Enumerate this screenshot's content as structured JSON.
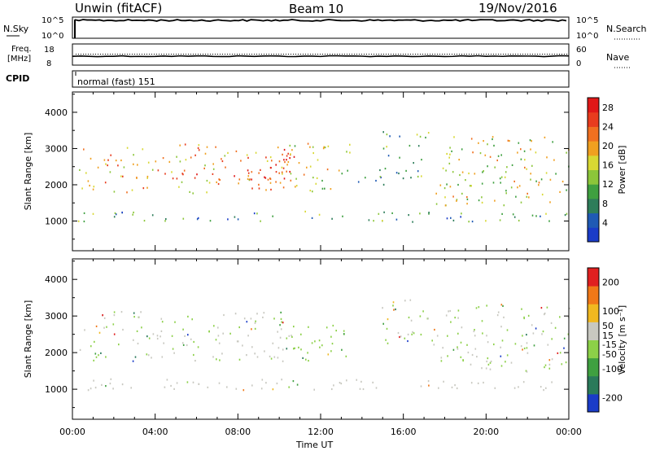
{
  "header": {
    "station": "Unwin (fitACF)",
    "beam": "Beam 10",
    "date": "19/Nov/2016"
  },
  "strips": {
    "nsky_label": "N.Sky",
    "nsky_ticks": [
      "10^5",
      "10^0"
    ],
    "nsearch_label": "N.Search",
    "freq_label_1": "Freq.",
    "freq_label_2": "[MHz]",
    "freq_ticks": [
      "18",
      "8"
    ],
    "nave_label": "Nave",
    "nave_ticks": [
      "60",
      "0"
    ],
    "cpid_label": "CPID",
    "cpid_value": "normal (fast) 151"
  },
  "chart_data": [
    {
      "type": "heatmap",
      "title": "",
      "xlabel": "",
      "ylabel": "Slant Range [km]",
      "xlim": [
        0,
        24
      ],
      "ylim": [
        180,
        4560
      ],
      "x_ticks": [
        "00:00",
        "04:00",
        "08:00",
        "12:00",
        "16:00",
        "20:00",
        "00:00"
      ],
      "y_ticks": [
        1000,
        2000,
        3000,
        4000
      ],
      "colorbar": {
        "label": "Power [dB]",
        "ticks": [
          4,
          8,
          12,
          16,
          20,
          24,
          28
        ],
        "range": [
          0,
          30
        ],
        "colors": [
          "#1a3cc8",
          "#1f5ab4",
          "#2e7d5a",
          "#3fa040",
          "#8cc63a",
          "#d8d833",
          "#f0a020",
          "#f07020",
          "#e83c1e",
          "#e01818"
        ]
      },
      "regions": [
        {
          "t0": 0.3,
          "t1": 10.6,
          "r0": 1780,
          "r1": 3150,
          "level": 20
        },
        {
          "t0": 5.5,
          "t1": 10.5,
          "r0": 2150,
          "r1": 2450,
          "level": 27
        },
        {
          "t0": 9.5,
          "t1": 10.8,
          "r0": 2350,
          "r1": 3050,
          "level": 28
        },
        {
          "t0": 10.5,
          "t1": 13.5,
          "r0": 1800,
          "r1": 3200,
          "level": 16
        },
        {
          "t0": 12.8,
          "t1": 15.2,
          "r0": 1950,
          "r1": 2250,
          "level": 6
        },
        {
          "t0": 14.8,
          "t1": 17.2,
          "r0": 2200,
          "r1": 3500,
          "level": 10
        },
        {
          "t0": 17.3,
          "t1": 24.0,
          "r0": 1450,
          "r1": 3350,
          "level": 16
        },
        {
          "t0": 0.2,
          "t1": 24.0,
          "r0": 1000,
          "r1": 1300,
          "level": 9
        }
      ]
    },
    {
      "type": "heatmap",
      "title": "",
      "xlabel": "Time UT",
      "ylabel": "Slant Range [km]",
      "xlim": [
        0,
        24
      ],
      "ylim": [
        180,
        4560
      ],
      "x_ticks": [
        "00:00",
        "04:00",
        "08:00",
        "12:00",
        "16:00",
        "20:00",
        "00:00"
      ],
      "y_ticks": [
        1000,
        2000,
        3000,
        4000
      ],
      "colorbar": {
        "label": "Velocity [m s⁻¹]",
        "ticks": [
          200,
          100,
          50,
          15,
          -15,
          -50,
          -100,
          -200
        ],
        "range": [
          -250,
          250
        ],
        "colors": [
          "#1a3cc8",
          "#2a7a5a",
          "#3fa040",
          "#8cd048",
          "#c8c8c0",
          "#f0b820",
          "#f07818",
          "#e02020"
        ]
      },
      "regions": [
        {
          "t0": 0.3,
          "t1": 10.6,
          "r0": 1780,
          "r1": 3150,
          "level": 0
        },
        {
          "t0": 10.5,
          "t1": 13.5,
          "r0": 1800,
          "r1": 2800,
          "level": -30
        },
        {
          "t0": 14.8,
          "t1": 17.2,
          "r0": 2200,
          "r1": 3500,
          "level": 0
        },
        {
          "t0": 17.3,
          "t1": 24.0,
          "r0": 1450,
          "r1": 3350,
          "level": 0
        },
        {
          "t0": 0.2,
          "t1": 24.0,
          "r0": 1000,
          "r1": 1300,
          "level": 30
        }
      ]
    }
  ]
}
